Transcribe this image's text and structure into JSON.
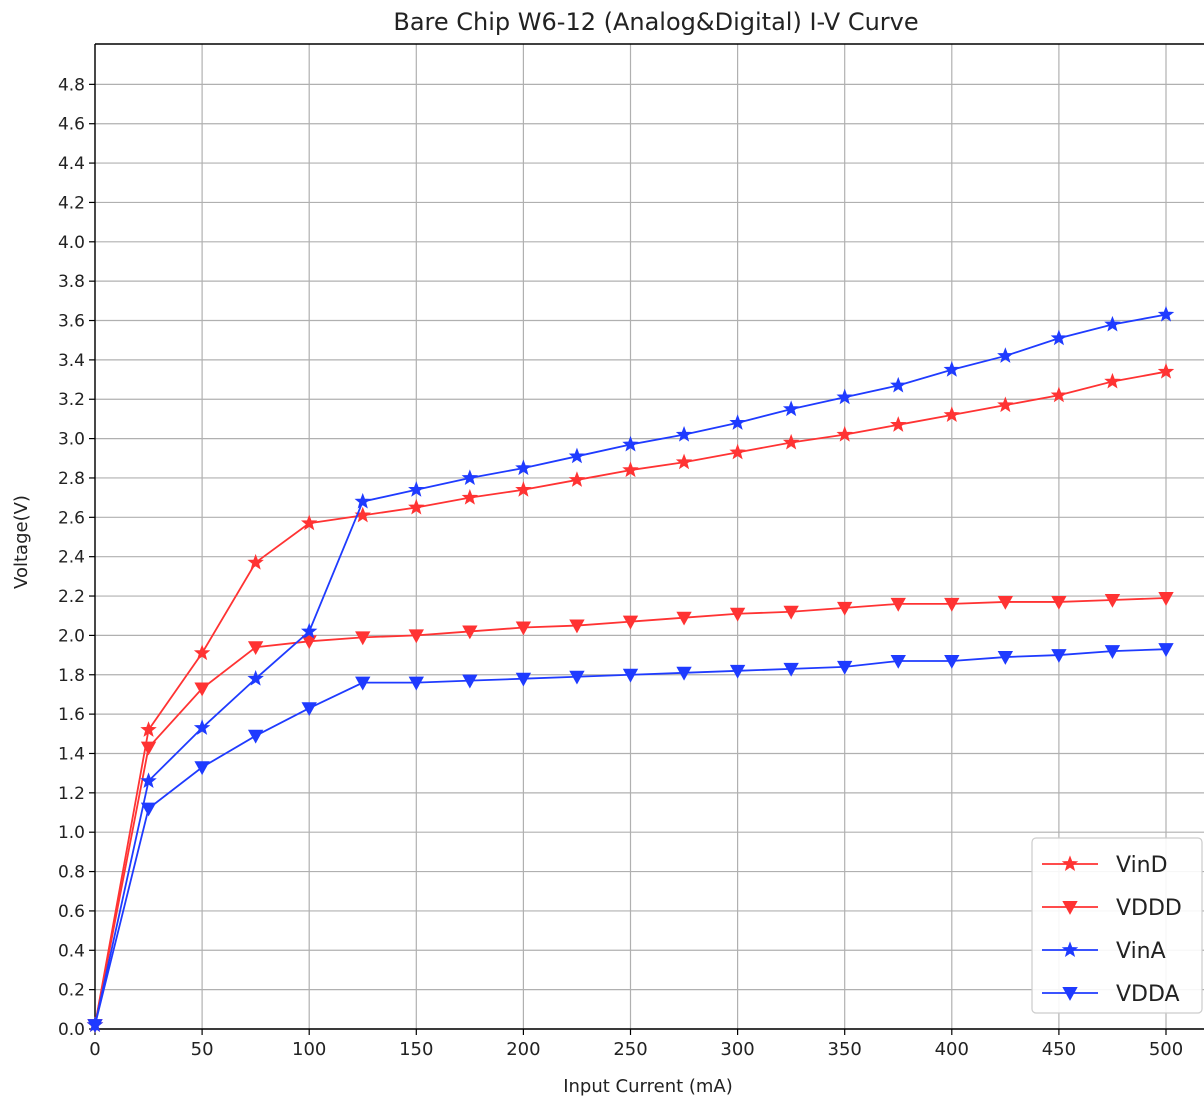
{
  "chart_data": {
    "type": "line",
    "title": "Bare Chip W6-12 (Analog&Digital) I-V Curve",
    "xlabel": "Input Current (mA)",
    "ylabel": "Voltage(V)",
    "xlim": [
      0,
      500
    ],
    "ylim": [
      0.0,
      5.0
    ],
    "xticks": [
      "0",
      "50",
      "100",
      "150",
      "200",
      "250",
      "300",
      "350",
      "400",
      "450",
      "500"
    ],
    "yticks": [
      "0.0",
      "0.2",
      "0.4",
      "0.6",
      "0.8",
      "1.0",
      "1.2",
      "1.4",
      "1.6",
      "1.8",
      "2.0",
      "2.2",
      "2.4",
      "2.6",
      "2.8",
      "3.0",
      "3.2",
      "3.4",
      "3.6",
      "3.8",
      "4.0",
      "4.2",
      "4.4",
      "4.6",
      "4.8"
    ],
    "grid": true,
    "legend_position": "bottom-right",
    "x": [
      0,
      25,
      50,
      75,
      100,
      125,
      150,
      175,
      200,
      225,
      250,
      275,
      300,
      325,
      350,
      375,
      400,
      425,
      450,
      475,
      500
    ],
    "series": [
      {
        "name": "VinD",
        "color": "#ff3333",
        "marker": "star",
        "values": [
          0.02,
          1.52,
          1.91,
          2.37,
          2.57,
          2.61,
          2.65,
          2.7,
          2.74,
          2.79,
          2.84,
          2.88,
          2.93,
          2.98,
          3.02,
          3.07,
          3.12,
          3.17,
          3.22,
          3.29,
          3.34
        ]
      },
      {
        "name": "VDDD",
        "color": "#ff3333",
        "marker": "triangle-down",
        "values": [
          0.02,
          1.43,
          1.73,
          1.94,
          1.97,
          1.99,
          2.0,
          2.02,
          2.04,
          2.05,
          2.07,
          2.09,
          2.11,
          2.12,
          2.14,
          2.16,
          2.16,
          2.17,
          2.17,
          2.18,
          2.19
        ]
      },
      {
        "name": "VinA",
        "color": "#1f3bff",
        "marker": "star",
        "values": [
          0.02,
          1.26,
          1.53,
          1.78,
          2.02,
          2.68,
          2.74,
          2.8,
          2.85,
          2.91,
          2.97,
          3.02,
          3.08,
          3.15,
          3.21,
          3.27,
          3.35,
          3.42,
          3.51,
          3.58,
          3.63
        ]
      },
      {
        "name": "VDDA",
        "color": "#1f3bff",
        "marker": "triangle-down",
        "values": [
          0.02,
          1.12,
          1.33,
          1.49,
          1.63,
          1.76,
          1.76,
          1.77,
          1.78,
          1.79,
          1.8,
          1.81,
          1.82,
          1.83,
          1.84,
          1.87,
          1.87,
          1.89,
          1.9,
          1.92,
          1.93
        ]
      }
    ]
  }
}
